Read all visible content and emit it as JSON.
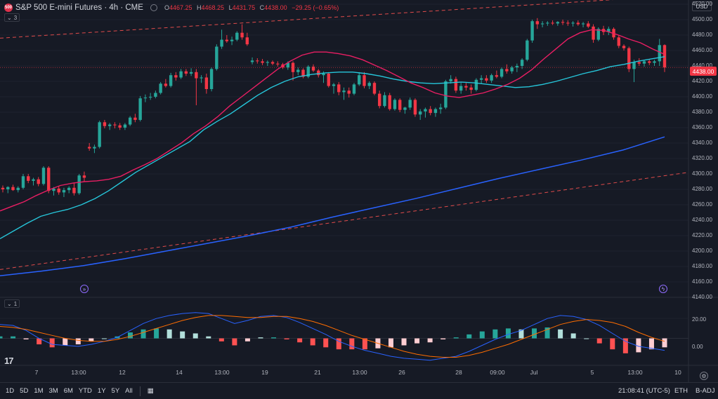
{
  "header": {
    "logo_text": "500",
    "symbol": "S&P 500 E-mini Futures · 4h · CME",
    "ohlc": [
      {
        "label": "O",
        "value": "4467.25"
      },
      {
        "label": "H",
        "value": "4468.25"
      },
      {
        "label": "L",
        "value": "4431.75"
      },
      {
        "label": "C",
        "value": "4438.00"
      },
      {
        "label": "",
        "value": "−29.25 (−0.65%)"
      }
    ],
    "collapsed_indicators": "3",
    "currency": "USD"
  },
  "last_price_label": "4438.00",
  "colors": {
    "up": "#26a69a",
    "down": "#f23645",
    "ma_fast": "#e91e63",
    "ma_mid": "#26c6da",
    "ma_slow": "#2962ff",
    "channel": "#e04b4b"
  },
  "price_axis": [
    "4520.00",
    "4500.00",
    "4480.00",
    "4460.00",
    "4440.00",
    "4420.00",
    "4400.00",
    "4380.00",
    "4360.00",
    "4340.00",
    "4320.00",
    "4300.00",
    "4280.00",
    "4260.00",
    "4240.00",
    "4220.00",
    "4200.00",
    "4180.00",
    "4160.00",
    "4140.00"
  ],
  "time_axis": [
    "7",
    "13:00",
    "12",
    "14",
    "13:00",
    "19",
    "21",
    "13:00",
    "26",
    "28",
    "09:00",
    "Jul",
    "5",
    "13:00",
    "10"
  ],
  "macd_pane": {
    "label": "1",
    "axis": [
      "20.00",
      "0.00"
    ]
  },
  "bottom_bar": {
    "timeframes": [
      "1D",
      "5D",
      "1M",
      "3M",
      "6M",
      "YTD",
      "1Y",
      "5Y",
      "All"
    ],
    "clock": "21:08:41 (UTC-5)",
    "session": "ETH",
    "adjust": "B-ADJ"
  },
  "chart_data": {
    "type": "candlestick",
    "ylim": [
      4140,
      4520
    ],
    "candles": [
      [
        4282,
        4285,
        4276,
        4280
      ],
      [
        4280,
        4284,
        4275,
        4283
      ],
      [
        4283,
        4286,
        4278,
        4279
      ],
      [
        4279,
        4284,
        4276,
        4282
      ],
      [
        4282,
        4300,
        4280,
        4297
      ],
      [
        4297,
        4300,
        4288,
        4291
      ],
      [
        4291,
        4295,
        4285,
        4293
      ],
      [
        4293,
        4296,
        4284,
        4287
      ],
      [
        4287,
        4310,
        4285,
        4308
      ],
      [
        4308,
        4310,
        4275,
        4278
      ],
      [
        4278,
        4283,
        4272,
        4281
      ],
      [
        4281,
        4284,
        4273,
        4276
      ],
      [
        4276,
        4282,
        4270,
        4279
      ],
      [
        4279,
        4284,
        4275,
        4282
      ],
      [
        4282,
        4289,
        4272,
        4275
      ],
      [
        4275,
        4300,
        4273,
        4298
      ],
      [
        4298,
        4303,
        4290,
        4295
      ],
      [
        4335,
        4340,
        4330,
        4333
      ],
      [
        4333,
        4338,
        4327,
        4335
      ],
      [
        4335,
        4369,
        4333,
        4367
      ],
      [
        4367,
        4370,
        4359,
        4362
      ],
      [
        4362,
        4366,
        4357,
        4364
      ],
      [
        4364,
        4367,
        4359,
        4363
      ],
      [
        4363,
        4366,
        4357,
        4360
      ],
      [
        4360,
        4366,
        4357,
        4364
      ],
      [
        4364,
        4375,
        4362,
        4373
      ],
      [
        4373,
        4378,
        4367,
        4370
      ],
      [
        4370,
        4401,
        4368,
        4398
      ],
      [
        4398,
        4403,
        4393,
        4399
      ],
      [
        4399,
        4405,
        4396,
        4400
      ],
      [
        4400,
        4408,
        4398,
        4405
      ],
      [
        4405,
        4419,
        4403,
        4417
      ],
      [
        4417,
        4423,
        4412,
        4414
      ],
      [
        4414,
        4431,
        4412,
        4428
      ],
      [
        4428,
        4432,
        4421,
        4425
      ],
      [
        4425,
        4436,
        4423,
        4433
      ],
      [
        4433,
        4436,
        4427,
        4430
      ],
      [
        4430,
        4437,
        4427,
        4432
      ],
      [
        4432,
        4436,
        4389,
        4424
      ],
      [
        4424,
        4428,
        4418,
        4425
      ],
      [
        4425,
        4430,
        4404,
        4410
      ],
      [
        4410,
        4438,
        4407,
        4436
      ],
      [
        4436,
        4468,
        4434,
        4465
      ],
      [
        4465,
        4487,
        4462,
        4474
      ],
      [
        4474,
        4480,
        4470,
        4472
      ],
      [
        4472,
        4478,
        4467,
        4474
      ],
      [
        4474,
        4485,
        4472,
        4483
      ],
      [
        4483,
        4494,
        4474,
        4477
      ],
      [
        4477,
        4483,
        4466,
        4468
      ],
      [
        4445,
        4451,
        4442,
        4447
      ],
      [
        4447,
        4450,
        4443,
        4446
      ],
      [
        4446,
        4449,
        4441,
        4444
      ],
      [
        4444,
        4447,
        4440,
        4445
      ],
      [
        4445,
        4447,
        4441,
        4443
      ],
      [
        4443,
        4446,
        4439,
        4442
      ],
      [
        4442,
        4444,
        4436,
        4438
      ],
      [
        4438,
        4446,
        4435,
        4444
      ],
      [
        4444,
        4446,
        4421,
        4432
      ],
      [
        4432,
        4438,
        4428,
        4435
      ],
      [
        4435,
        4437,
        4424,
        4426
      ],
      [
        4426,
        4441,
        4424,
        4439
      ],
      [
        4439,
        4442,
        4432,
        4434
      ],
      [
        4434,
        4436,
        4425,
        4428
      ],
      [
        4428,
        4433,
        4418,
        4430
      ],
      [
        4430,
        4432,
        4412,
        4414
      ],
      [
        4414,
        4418,
        4404,
        4416
      ],
      [
        4416,
        4419,
        4402,
        4406
      ],
      [
        4406,
        4412,
        4396,
        4408
      ],
      [
        4408,
        4412,
        4399,
        4404
      ],
      [
        4404,
        4418,
        4402,
        4416
      ],
      [
        4416,
        4432,
        4414,
        4428
      ],
      [
        4428,
        4432,
        4411,
        4414
      ],
      [
        4414,
        4420,
        4410,
        4418
      ],
      [
        4418,
        4420,
        4402,
        4404
      ],
      [
        4404,
        4408,
        4385,
        4388
      ],
      [
        4388,
        4406,
        4386,
        4402
      ],
      [
        4402,
        4405,
        4382,
        4384
      ],
      [
        4384,
        4398,
        4382,
        4396
      ],
      [
        4396,
        4398,
        4380,
        4383
      ],
      [
        4383,
        4387,
        4378,
        4386
      ],
      [
        4386,
        4399,
        4383,
        4396
      ],
      [
        4396,
        4398,
        4374,
        4377
      ],
      [
        4377,
        4384,
        4370,
        4381
      ],
      [
        4381,
        4386,
        4373,
        4384
      ],
      [
        4384,
        4388,
        4376,
        4379
      ],
      [
        4379,
        4386,
        4374,
        4384
      ],
      [
        4384,
        4391,
        4378,
        4386
      ],
      [
        4386,
        4422,
        4384,
        4420
      ],
      [
        4420,
        4428,
        4417,
        4423
      ],
      [
        4423,
        4426,
        4405,
        4408
      ],
      [
        4408,
        4418,
        4404,
        4414
      ],
      [
        4414,
        4418,
        4408,
        4412
      ],
      [
        4412,
        4416,
        4404,
        4409
      ],
      [
        4409,
        4424,
        4407,
        4422
      ],
      [
        4422,
        4428,
        4417,
        4424
      ],
      [
        4424,
        4428,
        4418,
        4421
      ],
      [
        4421,
        4430,
        4418,
        4428
      ],
      [
        4428,
        4434,
        4424,
        4426
      ],
      [
        4426,
        4438,
        4424,
        4436
      ],
      [
        4436,
        4442,
        4430,
        4433
      ],
      [
        4433,
        4440,
        4430,
        4438
      ],
      [
        4438,
        4443,
        4432,
        4440
      ],
      [
        4440,
        4450,
        4436,
        4448
      ],
      [
        4448,
        4475,
        4446,
        4473
      ],
      [
        4473,
        4500,
        4470,
        4498
      ],
      [
        4498,
        4502,
        4488,
        4494
      ],
      [
        4494,
        4498,
        4490,
        4495
      ],
      [
        4495,
        4498,
        4492,
        4496
      ],
      [
        4496,
        4499,
        4493,
        4495
      ],
      [
        4495,
        4498,
        4492,
        4497
      ],
      [
        4497,
        4500,
        4493,
        4496
      ],
      [
        4496,
        4499,
        4492,
        4495
      ],
      [
        4495,
        4498,
        4491,
        4496
      ],
      [
        4496,
        4499,
        4492,
        4494
      ],
      [
        4494,
        4497,
        4490,
        4495
      ],
      [
        4495,
        4498,
        4489,
        4491
      ],
      [
        4491,
        4494,
        4470,
        4474
      ],
      [
        4474,
        4490,
        4472,
        4488
      ],
      [
        4488,
        4492,
        4480,
        4484
      ],
      [
        4484,
        4491,
        4480,
        4488
      ],
      [
        4488,
        4490,
        4474,
        4477
      ],
      [
        4477,
        4480,
        4463,
        4466
      ],
      [
        4466,
        4468,
        4460,
        4463
      ],
      [
        4463,
        4465,
        4432,
        4436
      ],
      [
        4436,
        4448,
        4419,
        4445
      ],
      [
        4445,
        4450,
        4440,
        4443
      ],
      [
        4443,
        4448,
        4439,
        4446
      ],
      [
        4446,
        4449,
        4441,
        4444
      ],
      [
        4444,
        4448,
        4440,
        4446
      ],
      [
        4446,
        4475,
        4440,
        4467
      ],
      [
        4467,
        4468,
        4432,
        4438
      ]
    ],
    "ma_fast": [
      4252,
      4258,
      4264,
      4272,
      4279,
      4285,
      4288,
      4290,
      4291,
      4293,
      4297,
      4305,
      4312,
      4320,
      4330,
      4340,
      4352,
      4362,
      4374,
      4388,
      4400,
      4412,
      4424,
      4436,
      4446,
      4454,
      4458,
      4458,
      4456,
      4453,
      4448,
      4441,
      4434,
      4426,
      4418,
      4412,
      4405,
      4401,
      4399,
      4402,
      4405,
      4410,
      4416,
      4424,
      4435,
      4449,
      4462,
      4475,
      4483,
      4487,
      4486,
      4481,
      4475,
      4470,
      4462,
      4455
    ],
    "ma_mid": [
      4216,
      4226,
      4236,
      4245,
      4250,
      4254,
      4260,
      4268,
      4278,
      4290,
      4302,
      4312,
      4322,
      4332,
      4342,
      4357,
      4368,
      4378,
      4390,
      4402,
      4412,
      4420,
      4426,
      4429,
      4431,
      4432,
      4432,
      4430,
      4427,
      4423,
      4420,
      4418,
      4417,
      4418,
      4419,
      4418,
      4416,
      4414,
      4412,
      4413,
      4416,
      4420,
      4425,
      4430,
      4434,
      4439,
      4442,
      4446,
      4449,
      4452
    ],
    "ma_slow": [
      4168,
      4174,
      4181,
      4190,
      4200,
      4210,
      4220,
      4231,
      4244,
      4256,
      4268,
      4281,
      4294,
      4306,
      4318,
      4331,
      4348
    ],
    "channel": {
      "upper": [
        4476,
        4532
      ],
      "lower": [
        4176,
        4302
      ]
    },
    "macd": [
      14,
      13,
      8,
      0,
      -6,
      -7,
      -8,
      -6,
      -3,
      1,
      8,
      15,
      20,
      23,
      25,
      26,
      25,
      20,
      15,
      18,
      22,
      23,
      21,
      16,
      10,
      4,
      -3,
      -8,
      -12,
      -15,
      -18,
      -20,
      -21,
      -22,
      -20,
      -18,
      -13,
      -7,
      -1,
      4,
      8,
      14,
      20,
      23,
      22,
      19,
      13,
      5,
      -3,
      -8,
      -10,
      -12
    ],
    "signal": [
      12,
      11,
      9,
      6,
      3,
      0,
      -2,
      -3,
      -3,
      -1,
      2,
      6,
      10,
      14,
      18,
      21,
      23,
      23,
      22,
      21,
      21,
      22,
      22,
      20,
      17,
      13,
      8,
      3,
      -1,
      -5,
      -9,
      -13,
      -16,
      -18,
      -19,
      -19,
      -17,
      -14,
      -10,
      -6,
      -1,
      4,
      9,
      14,
      17,
      19,
      18,
      16,
      12,
      6,
      1,
      -3
    ],
    "macd_ylim": [
      -25,
      30
    ]
  }
}
